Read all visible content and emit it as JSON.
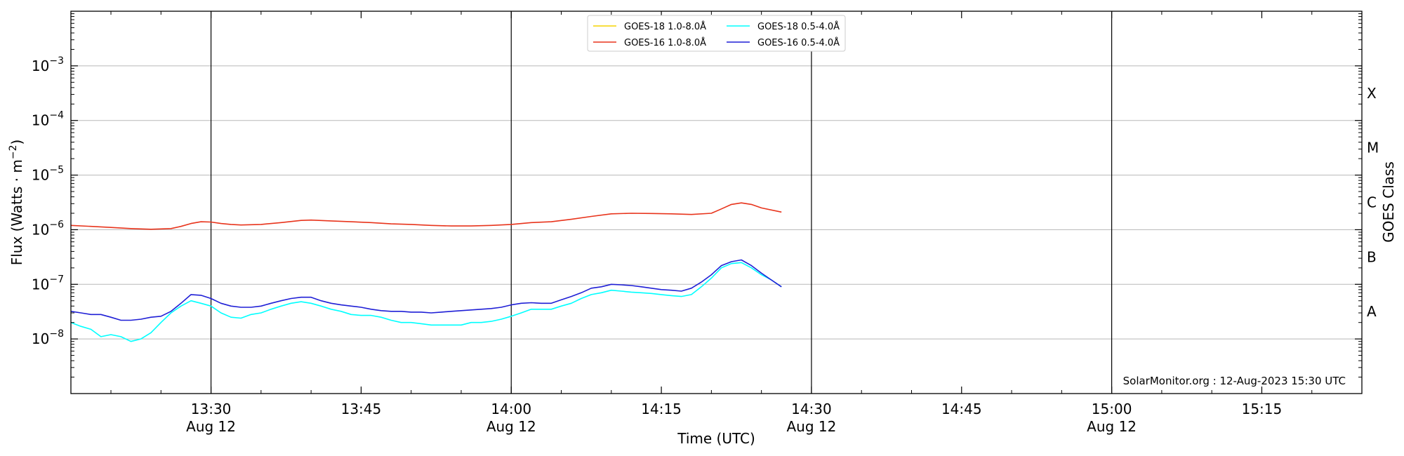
{
  "chart_data": {
    "type": "line",
    "xlabel": "Time (UTC)",
    "ylabel": "Flux (Watts · m",
    "ylabel_sup": "−2",
    "ylabel_close": ")",
    "right_label": "GOES Class",
    "y_scale": "log",
    "xlim": [
      "13:16",
      "15:25"
    ],
    "ylim": [
      1e-09,
      0.01
    ],
    "grid": "horizontal",
    "legend_position": "top-center",
    "x_ticks": [
      {
        "time": "13:30",
        "label": "13:30",
        "sub": "Aug 12",
        "major": true
      },
      {
        "time": "13:45",
        "label": "13:45",
        "sub": "",
        "major": false
      },
      {
        "time": "14:00",
        "label": "14:00",
        "sub": "Aug 12",
        "major": true
      },
      {
        "time": "14:15",
        "label": "14:15",
        "sub": "",
        "major": false
      },
      {
        "time": "14:30",
        "label": "14:30",
        "sub": "Aug 12",
        "major": true
      },
      {
        "time": "14:45",
        "label": "14:45",
        "sub": "",
        "major": false
      },
      {
        "time": "15:00",
        "label": "15:00",
        "sub": "Aug 12",
        "major": true
      },
      {
        "time": "15:15",
        "label": "15:15",
        "sub": "",
        "major": false
      }
    ],
    "y_ticks": [
      {
        "value": 1e-08,
        "base": "10",
        "exp": "−8"
      },
      {
        "value": 1e-07,
        "base": "10",
        "exp": "−7"
      },
      {
        "value": 1e-06,
        "base": "10",
        "exp": "−6"
      },
      {
        "value": 1e-05,
        "base": "10",
        "exp": "−5"
      },
      {
        "value": 0.0001,
        "base": "10",
        "exp": "−4"
      },
      {
        "value": 0.001,
        "base": "10",
        "exp": "−3"
      }
    ],
    "goes_classes": [
      {
        "label": "A",
        "value": 3.16e-08
      },
      {
        "label": "B",
        "value": 3.16e-07
      },
      {
        "label": "C",
        "value": 3.16e-06
      },
      {
        "label": "M",
        "value": 3.16e-05
      },
      {
        "label": "X",
        "value": 0.000316
      }
    ],
    "series": [
      {
        "name": "GOES-18 1.0-8.0Å",
        "color": "#f5d300",
        "times": [],
        "values": []
      },
      {
        "name": "GOES-16 1.0-8.0Å",
        "color": "#e8341c",
        "times": [
          "13:16",
          "13:18",
          "13:20",
          "13:22",
          "13:24",
          "13:26",
          "13:27",
          "13:28",
          "13:29",
          "13:30",
          "13:31",
          "13:32",
          "13:33",
          "13:35",
          "13:37",
          "13:39",
          "13:40",
          "13:42",
          "13:44",
          "13:46",
          "13:48",
          "13:50",
          "13:52",
          "13:54",
          "13:56",
          "13:58",
          "14:00",
          "14:02",
          "14:04",
          "14:06",
          "14:08",
          "14:10",
          "14:12",
          "14:14",
          "14:16",
          "14:18",
          "14:20",
          "14:21",
          "14:22",
          "14:23",
          "14:24",
          "14:25",
          "14:27"
        ],
        "values": [
          1.2e-06,
          1.15e-06,
          1.1e-06,
          1.05e-06,
          1.02e-06,
          1.05e-06,
          1.15e-06,
          1.3e-06,
          1.4e-06,
          1.38e-06,
          1.3e-06,
          1.25e-06,
          1.22e-06,
          1.25e-06,
          1.35e-06,
          1.48e-06,
          1.5e-06,
          1.45e-06,
          1.4e-06,
          1.35e-06,
          1.28e-06,
          1.25e-06,
          1.2e-06,
          1.17e-06,
          1.17e-06,
          1.2e-06,
          1.25e-06,
          1.35e-06,
          1.4e-06,
          1.55e-06,
          1.75e-06,
          1.95e-06,
          2e-06,
          1.98e-06,
          1.95e-06,
          1.9e-06,
          2e-06,
          2.4e-06,
          2.9e-06,
          3.1e-06,
          2.9e-06,
          2.5e-06,
          2.1e-06
        ]
      },
      {
        "name": "GOES-18 0.5-4.0Å",
        "color": "#00ffff",
        "times": [
          "13:16",
          "13:17",
          "13:18",
          "13:19",
          "13:20",
          "13:21",
          "13:22",
          "13:23",
          "13:24",
          "13:25",
          "13:26",
          "13:27",
          "13:28",
          "13:29",
          "13:30",
          "13:31",
          "13:32",
          "13:33",
          "13:34",
          "13:35",
          "13:36",
          "13:37",
          "13:38",
          "13:39",
          "13:40",
          "13:41",
          "13:42",
          "13:43",
          "13:44",
          "13:45",
          "13:46",
          "13:47",
          "13:48",
          "13:49",
          "13:50",
          "13:51",
          "13:52",
          "13:53",
          "13:54",
          "13:55",
          "13:56",
          "13:57",
          "13:58",
          "13:59",
          "14:00",
          "14:01",
          "14:02",
          "14:03",
          "14:04",
          "14:05",
          "14:06",
          "14:07",
          "14:08",
          "14:09",
          "14:10",
          "14:11",
          "14:12",
          "14:13",
          "14:14",
          "14:15",
          "14:16",
          "14:17",
          "14:18",
          "14:19",
          "14:20",
          "14:21",
          "14:22",
          "14:23",
          "14:24",
          "14:25",
          "14:26",
          "14:27"
        ],
        "values": [
          2e-08,
          1.7e-08,
          1.5e-08,
          1.1e-08,
          1.2e-08,
          1.1e-08,
          9e-09,
          1e-08,
          1.3e-08,
          2e-08,
          3e-08,
          4e-08,
          5e-08,
          4.5e-08,
          4e-08,
          3e-08,
          2.5e-08,
          2.4e-08,
          2.8e-08,
          3e-08,
          3.5e-08,
          4e-08,
          4.5e-08,
          4.8e-08,
          4.5e-08,
          4e-08,
          3.5e-08,
          3.2e-08,
          2.8e-08,
          2.7e-08,
          2.7e-08,
          2.5e-08,
          2.2e-08,
          2e-08,
          2e-08,
          1.9e-08,
          1.8e-08,
          1.8e-08,
          1.8e-08,
          1.8e-08,
          2e-08,
          2e-08,
          2.1e-08,
          2.3e-08,
          2.6e-08,
          3e-08,
          3.5e-08,
          3.5e-08,
          3.5e-08,
          4e-08,
          4.5e-08,
          5.5e-08,
          6.5e-08,
          7e-08,
          7.8e-08,
          7.5e-08,
          7.2e-08,
          7e-08,
          6.8e-08,
          6.5e-08,
          6.2e-08,
          6e-08,
          6.5e-08,
          9e-08,
          1.3e-07,
          2e-07,
          2.4e-07,
          2.5e-07,
          2e-07,
          1.5e-07,
          1.2e-07,
          9e-08
        ]
      },
      {
        "name": "GOES-16 0.5-4.0Å",
        "color": "#1f1fd6",
        "times": [
          "13:16",
          "13:17",
          "13:18",
          "13:19",
          "13:20",
          "13:21",
          "13:22",
          "13:23",
          "13:24",
          "13:25",
          "13:26",
          "13:27",
          "13:28",
          "13:29",
          "13:30",
          "13:31",
          "13:32",
          "13:33",
          "13:34",
          "13:35",
          "13:36",
          "13:37",
          "13:38",
          "13:39",
          "13:40",
          "13:41",
          "13:42",
          "13:43",
          "13:44",
          "13:45",
          "13:46",
          "13:47",
          "13:48",
          "13:49",
          "13:50",
          "13:51",
          "13:52",
          "13:53",
          "13:54",
          "13:55",
          "13:56",
          "13:57",
          "13:58",
          "13:59",
          "14:00",
          "14:01",
          "14:02",
          "14:03",
          "14:04",
          "14:05",
          "14:06",
          "14:07",
          "14:08",
          "14:09",
          "14:10",
          "14:11",
          "14:12",
          "14:13",
          "14:14",
          "14:15",
          "14:16",
          "14:17",
          "14:18",
          "14:19",
          "14:20",
          "14:21",
          "14:22",
          "14:23",
          "14:24",
          "14:25",
          "14:26",
          "14:27"
        ],
        "values": [
          3.2e-08,
          3e-08,
          2.8e-08,
          2.8e-08,
          2.5e-08,
          2.2e-08,
          2.2e-08,
          2.3e-08,
          2.5e-08,
          2.6e-08,
          3.2e-08,
          4.5e-08,
          6.5e-08,
          6.3e-08,
          5.5e-08,
          4.5e-08,
          4e-08,
          3.8e-08,
          3.8e-08,
          4e-08,
          4.5e-08,
          5e-08,
          5.5e-08,
          5.8e-08,
          5.8e-08,
          5e-08,
          4.5e-08,
          4.2e-08,
          4e-08,
          3.8e-08,
          3.5e-08,
          3.3e-08,
          3.2e-08,
          3.2e-08,
          3.1e-08,
          3.1e-08,
          3e-08,
          3.1e-08,
          3.2e-08,
          3.3e-08,
          3.4e-08,
          3.5e-08,
          3.6e-08,
          3.8e-08,
          4.2e-08,
          4.5e-08,
          4.6e-08,
          4.5e-08,
          4.5e-08,
          5.2e-08,
          6e-08,
          7e-08,
          8.5e-08,
          9e-08,
          1e-07,
          9.8e-08,
          9.5e-08,
          9e-08,
          8.5e-08,
          8e-08,
          7.8e-08,
          7.5e-08,
          8.5e-08,
          1.1e-07,
          1.5e-07,
          2.2e-07,
          2.6e-07,
          2.8e-07,
          2.2e-07,
          1.6e-07,
          1.2e-07,
          9e-08
        ]
      }
    ],
    "credit": "SolarMonitor.org : 12-Aug-2023 15:30 UTC"
  }
}
